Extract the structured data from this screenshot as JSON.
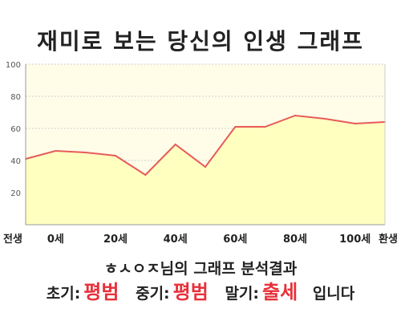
{
  "title": "재미로 보는 당신의 인생 그래프",
  "chart_data": {
    "type": "area",
    "x": [
      "전생",
      "0세",
      "",
      "20세",
      "",
      "40세",
      "",
      "60세",
      "",
      "80세",
      "",
      "100세",
      "환생"
    ],
    "values": [
      41,
      46,
      45,
      43,
      31,
      50,
      36,
      61,
      61,
      68,
      66,
      63,
      64
    ],
    "ylim": [
      0,
      100
    ],
    "yticks": [
      20,
      40,
      60,
      80,
      100
    ],
    "grid": true,
    "colors": {
      "line": "#e85a5a",
      "fill": "#ffffc0",
      "plot_bg": "#fffde8",
      "grid": "#cfcfcf"
    }
  },
  "result": {
    "name_text": "ㅎㅅㅇㅈ님의 그래프 분석결과",
    "early_label": "초기:",
    "early_value": "평범",
    "mid_label": "중기:",
    "mid_value": "평범",
    "late_label": "말기:",
    "late_value": "출세",
    "ending": "입니다"
  }
}
